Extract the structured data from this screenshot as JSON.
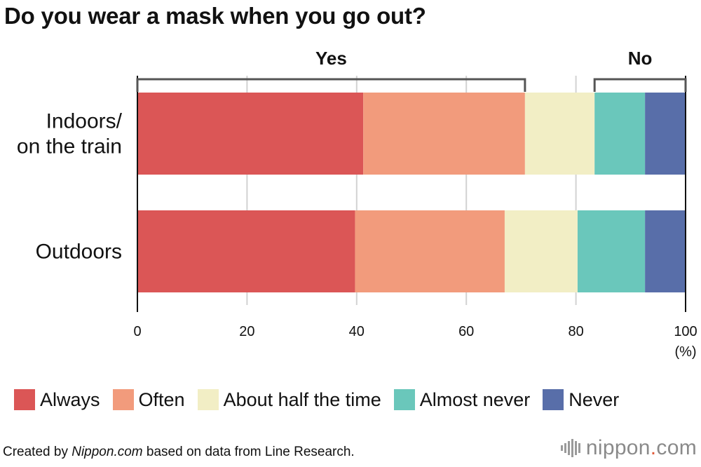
{
  "title": "Do you wear a mask when you go out?",
  "chart_data": {
    "type": "bar",
    "orientation": "horizontal",
    "stacked": true,
    "categories": [
      "Indoors/\non the train",
      "Outdoors"
    ],
    "series": [
      {
        "name": "Always",
        "color": "#db5656",
        "values": [
          41.2,
          39.7
        ]
      },
      {
        "name": "Often",
        "color": "#f29b7c",
        "values": [
          29.5,
          27.3
        ]
      },
      {
        "name": "About half the time",
        "color": "#f2eec5",
        "values": [
          12.7,
          13.3
        ]
      },
      {
        "name": "Almost never",
        "color": "#6ac7bb",
        "values": [
          9.2,
          12.3
        ]
      },
      {
        "name": "Never",
        "color": "#586ea9",
        "values": [
          7.4,
          7.4
        ]
      }
    ],
    "xlim": [
      0,
      100
    ],
    "xticks": [
      0,
      20,
      40,
      60,
      80,
      100
    ],
    "xunit": "(%)",
    "grid": true,
    "legend_position": "bottom",
    "groups": [
      {
        "label": "Yes",
        "from": 0,
        "to": 70.7
      },
      {
        "label": "No",
        "to": 100,
        "from": 83.4
      }
    ]
  },
  "source": {
    "prefix": "Created by ",
    "site": "Nippon.com",
    "suffix": " based on data from Line Research."
  },
  "logo": {
    "name": "nippon",
    "dot": ".",
    "tld": "com"
  }
}
